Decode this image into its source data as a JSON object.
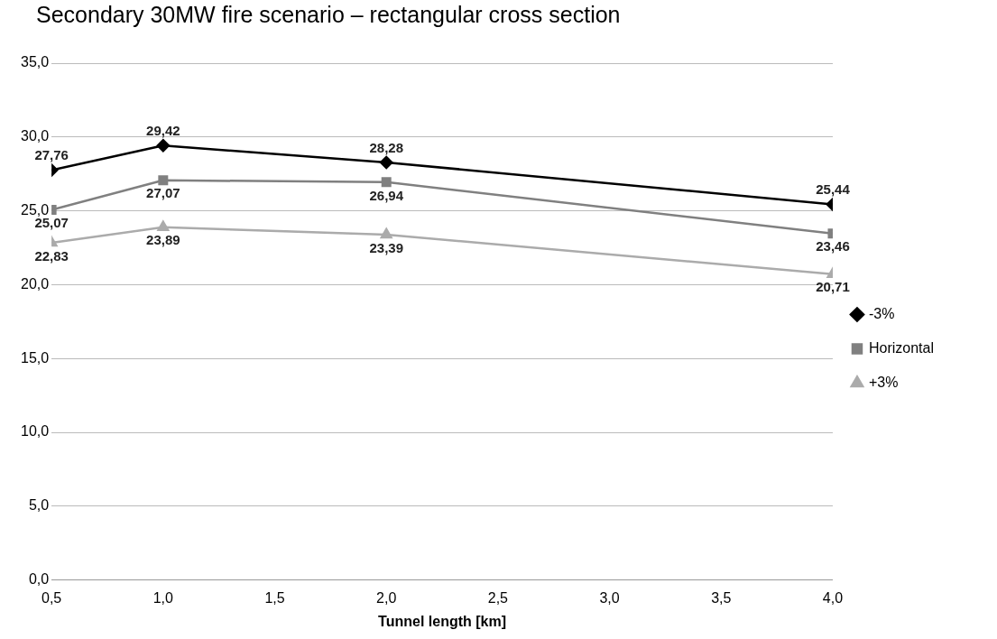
{
  "chart_data": {
    "type": "line",
    "title": "Secondary 30MW fire scenario – rectangular cross section",
    "xlabel": "Tunnel length [km]",
    "x": [
      0.5,
      1.0,
      2.0,
      4.0
    ],
    "series": [
      {
        "name": "-3%",
        "color": "#000000",
        "marker": "diamond",
        "values": [
          27.76,
          29.42,
          28.28,
          25.44
        ],
        "value_labels": [
          "27,76",
          "29,42",
          "28,28",
          "25,44"
        ]
      },
      {
        "name": "Horizontal",
        "color": "#808080",
        "marker": "square",
        "values": [
          25.07,
          27.07,
          26.94,
          23.46
        ],
        "value_labels": [
          "25,07",
          "27,07",
          "26,94",
          "23,46"
        ]
      },
      {
        "name": "+3%",
        "color": "#ababab",
        "marker": "triangle",
        "values": [
          22.83,
          23.89,
          23.39,
          20.71
        ],
        "value_labels": [
          "22,83",
          "23,89",
          "23,39",
          "20,71"
        ]
      }
    ],
    "xlim": [
      0.5,
      4.0
    ],
    "xticks": [
      {
        "value": 0.5,
        "label": "0,5"
      },
      {
        "value": 1.0,
        "label": "1,0"
      },
      {
        "value": 1.5,
        "label": "1,5"
      },
      {
        "value": 2.0,
        "label": "2,0"
      },
      {
        "value": 2.5,
        "label": "2,5"
      },
      {
        "value": 3.0,
        "label": "3,0"
      },
      {
        "value": 3.5,
        "label": "3,5"
      },
      {
        "value": 4.0,
        "label": "4,0"
      }
    ],
    "ylim": [
      0,
      35
    ],
    "yticks": [
      {
        "value": 0,
        "label": "0,0"
      },
      {
        "value": 5,
        "label": "5,0"
      },
      {
        "value": 10,
        "label": "10,0"
      },
      {
        "value": 15,
        "label": "15,0"
      },
      {
        "value": 20,
        "label": "20,0"
      },
      {
        "value": 25,
        "label": "25,0"
      },
      {
        "value": 30,
        "label": "30,0"
      },
      {
        "value": 35,
        "label": "35,0"
      }
    ],
    "grid": "y",
    "legend": "right",
    "line_style": "solid"
  }
}
